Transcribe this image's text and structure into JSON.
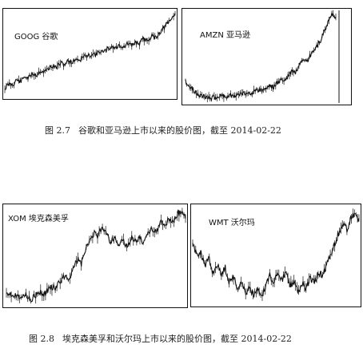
{
  "figure_2_7": {
    "number": "图 2.7",
    "caption": "谷歌和亚马逊上市以来的股价图，截至 2014-02-22"
  },
  "figure_2_8": {
    "number": "图 2.8",
    "caption": "埃克森美孚和沃尔玛上市以来的股价图，截至 2014-02-22"
  },
  "chart_data": [
    {
      "type": "line",
      "title": "GOOG 谷歌",
      "shape": [
        0.0,
        0.06,
        0.05,
        0.12,
        0.09,
        0.16,
        0.14,
        0.2,
        0.18,
        0.24,
        0.22,
        0.27,
        0.3,
        0.28,
        0.34,
        0.32,
        0.37,
        0.35,
        0.4,
        0.38,
        0.44,
        0.42,
        0.47,
        0.45,
        0.5,
        0.48,
        0.53,
        0.56,
        0.54,
        0.58,
        0.55,
        0.6,
        0.57,
        0.62,
        0.6,
        0.66,
        0.64,
        0.7,
        0.68,
        0.74,
        0.8,
        0.86,
        0.92,
        1.0
      ],
      "color": "#111111"
    },
    {
      "type": "line",
      "title": "AMZN 亚马逊",
      "shape": [
        0.2,
        0.14,
        0.1,
        0.06,
        0.04,
        0.02,
        0.01,
        0.0,
        0.01,
        0.02,
        0.03,
        0.02,
        0.03,
        0.04,
        0.03,
        0.05,
        0.06,
        0.05,
        0.07,
        0.08,
        0.1,
        0.09,
        0.12,
        0.15,
        0.13,
        0.18,
        0.22,
        0.2,
        0.26,
        0.32,
        0.3,
        0.38,
        0.44,
        0.42,
        0.5,
        0.56,
        0.62,
        0.7,
        0.8,
        0.92,
        1.0,
        0.94
      ],
      "color": "#111111"
    },
    {
      "type": "line",
      "title": "XOM 埃克森美孚",
      "shape": [
        0.08,
        0.06,
        0.04,
        0.03,
        0.05,
        0.02,
        0.0,
        0.03,
        0.06,
        0.04,
        0.1,
        0.14,
        0.12,
        0.2,
        0.26,
        0.22,
        0.34,
        0.44,
        0.4,
        0.54,
        0.66,
        0.74,
        0.7,
        0.82,
        0.76,
        0.64,
        0.7,
        0.6,
        0.66,
        0.56,
        0.72,
        0.64,
        0.7,
        0.62,
        0.74,
        0.8,
        0.76,
        0.86,
        0.82,
        0.9,
        0.86,
        0.96,
        1.0,
        0.92
      ],
      "color": "#111111"
    },
    {
      "type": "line",
      "title": "WMT 沃尔玛",
      "shape": [
        0.62,
        0.5,
        0.56,
        0.38,
        0.46,
        0.3,
        0.4,
        0.28,
        0.36,
        0.2,
        0.26,
        0.12,
        0.2,
        0.06,
        0.14,
        0.04,
        0.1,
        0.0,
        0.16,
        0.26,
        0.2,
        0.32,
        0.22,
        0.3,
        0.14,
        0.22,
        0.08,
        0.18,
        0.1,
        0.24,
        0.18,
        0.3,
        0.26,
        0.4,
        0.52,
        0.62,
        0.76,
        0.86,
        0.8,
        0.94,
        1.0,
        0.9
      ],
      "color": "#111111"
    }
  ]
}
